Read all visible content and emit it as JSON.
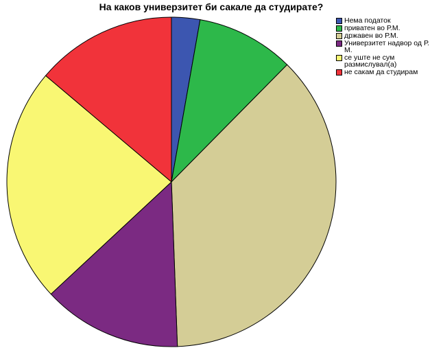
{
  "chart_data": {
    "type": "pie",
    "title": "На каков универзитет би сакале да студирате?",
    "categories": [
      "Нема податок",
      "приватен во Р.М.",
      "државен во Р.М.",
      "Универзитет надвор од Р.\nМ.",
      "се уште не сум\nразмислувал(а)",
      "не сакам да студирам"
    ],
    "values": [
      2.9,
      10.0,
      38.5,
      14.2,
      24.0,
      14.4
    ],
    "colors": [
      "#3c56b0",
      "#2db84a",
      "#d4cd96",
      "#7b2a82",
      "#f9f773",
      "#f1333a"
    ],
    "legend_position": "right"
  }
}
